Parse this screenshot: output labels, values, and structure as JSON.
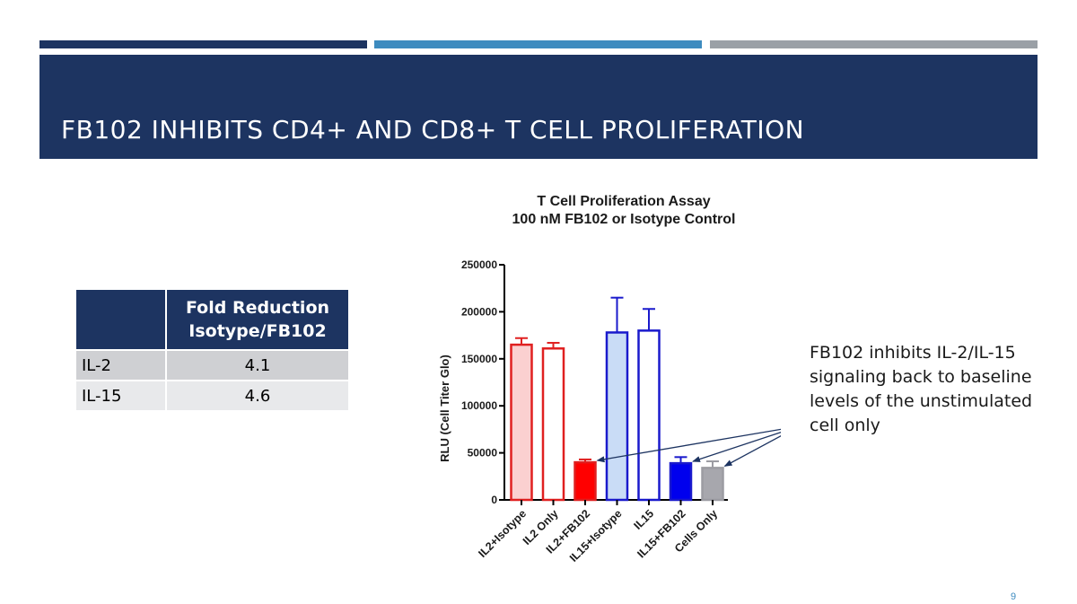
{
  "slide": {
    "title": "FB102 INHIBITS CD4+ AND CD8+ T CELL PROLIFERATION",
    "page_number": "9",
    "accent_colors": [
      "#1d3461",
      "#3d8bbf",
      "#9aa0a6"
    ]
  },
  "table": {
    "header_line1": "Fold Reduction",
    "header_line2": "Isotype/FB102",
    "rows": [
      {
        "label": "IL-2",
        "value": "4.1"
      },
      {
        "label": "IL-15",
        "value": "4.6"
      }
    ]
  },
  "callout": {
    "text": "FB102 inhibits IL-2/IL-15 signaling back to baseline levels of the  unstimulated cell only"
  },
  "chart_data": {
    "type": "bar",
    "title": "T Cell Proliferation Assay",
    "subtitle": "100 nM FB102 or Isotype Control",
    "xlabel": "",
    "ylabel": "RLU (Cell Titer Glo)",
    "ylim": [
      0,
      250000
    ],
    "yticks": [
      0,
      50000,
      100000,
      150000,
      200000,
      250000
    ],
    "grid": false,
    "categories": [
      "IL2+Isotype",
      "IL2 Only",
      "IL2+FB102",
      "IL15+Isotype",
      "IL15",
      "IL15+FB102",
      "Cells Only"
    ],
    "values": [
      165000,
      161000,
      40000,
      178000,
      180000,
      39000,
      34000
    ],
    "errors": [
      7000,
      6000,
      3000,
      37000,
      23000,
      6500,
      7000
    ],
    "colors": [
      {
        "fill": "#fbd0d0",
        "stroke": "#e02020"
      },
      {
        "fill": "#ffffff",
        "stroke": "#e02020"
      },
      {
        "fill": "#ff0000",
        "stroke": "#e02020"
      },
      {
        "fill": "#c9dcf6",
        "stroke": "#1a1acc"
      },
      {
        "fill": "#ffffff",
        "stroke": "#1a1acc"
      },
      {
        "fill": "#0000ee",
        "stroke": "#1a1acc"
      },
      {
        "fill": "#a7a7ad",
        "stroke": "#9c9ca2"
      }
    ],
    "arrow_targets": [
      "IL2+FB102",
      "IL15+FB102",
      "Cells Only"
    ],
    "arrow_color": "#1d3461"
  }
}
